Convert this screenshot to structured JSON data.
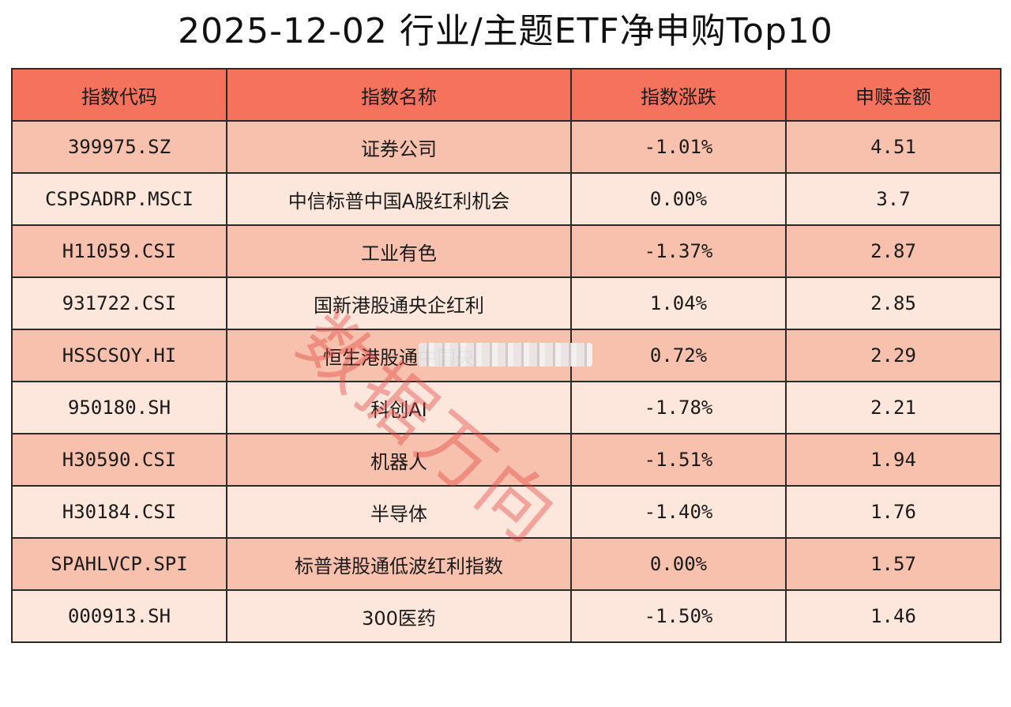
{
  "title": "2025-12-02 行业/主题ETF净申购Top10",
  "watermark": "数据万向",
  "colors": {
    "header_bg": "#f5735c",
    "row_odd_bg": "#f8c1ae",
    "row_even_bg": "#fde7dc",
    "border": "#2a2a2a",
    "watermark": "#e24640"
  },
  "chart_data": {
    "type": "table",
    "columns": [
      "指数代码",
      "指数名称",
      "指数涨跌",
      "申赎金额"
    ],
    "rows": [
      {
        "code": "399975.SZ",
        "name": "证券公司",
        "change": "-1.01%",
        "amount": "4.51"
      },
      {
        "code": "CSPSADRP.MSCI",
        "name": "中信标普中国A股红利机会",
        "change": "0.00%",
        "amount": "3.7"
      },
      {
        "code": "H11059.CSI",
        "name": "工业有色",
        "change": "-1.37%",
        "amount": "2.87"
      },
      {
        "code": "931722.CSI",
        "name": "国新港股通央企红利",
        "change": "1.04%",
        "amount": "2.85"
      },
      {
        "code": "HSSCSOY.HI",
        "name": "恒生港股通中国央",
        "change": "0.72%",
        "amount": "2.29"
      },
      {
        "code": "950180.SH",
        "name": "科创AI",
        "change": "-1.78%",
        "amount": "2.21"
      },
      {
        "code": "H30590.CSI",
        "name": "机器人",
        "change": "-1.51%",
        "amount": "1.94"
      },
      {
        "code": "H30184.CSI",
        "name": "半导体",
        "change": "-1.40%",
        "amount": "1.76"
      },
      {
        "code": "SPAHLVCP.SPI",
        "name": "标普港股通低波红利指数",
        "change": "0.00%",
        "amount": "1.57"
      },
      {
        "code": "000913.SH",
        "name": "300医药",
        "change": "-1.50%",
        "amount": "1.46"
      }
    ]
  }
}
